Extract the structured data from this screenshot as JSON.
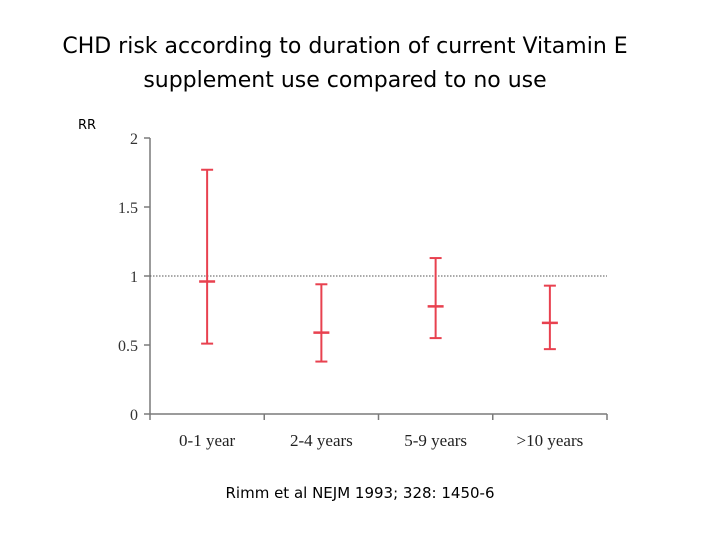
{
  "title": {
    "line1": "CHD risk according to duration of current Vitamin E",
    "line2": "supplement use compared to no use"
  },
  "citation": "Rimm et al NEJM 1993; 328: 1450-6",
  "chart_data": {
    "type": "errorbar",
    "title": "CHD risk according to duration of current Vitamin E supplement use compared to no use",
    "ylabel": "RR",
    "xlabel": "",
    "ylim": [
      0,
      2
    ],
    "yticks": [
      0,
      0.5,
      1,
      1.5,
      2
    ],
    "ytick_labels": [
      "0",
      "0.5",
      "1",
      "1.5",
      "2"
    ],
    "reference_line": 1,
    "categories": [
      "0-1 year",
      "2-4 years",
      "5-9 years",
      ">10 years"
    ],
    "series": [
      {
        "name": "RR",
        "point": [
          0.96,
          0.59,
          0.78,
          0.66
        ],
        "lower": [
          0.51,
          0.38,
          0.55,
          0.47
        ],
        "upper": [
          1.77,
          0.94,
          1.13,
          0.93
        ]
      }
    ],
    "color": "#e8414f",
    "grid": false
  }
}
